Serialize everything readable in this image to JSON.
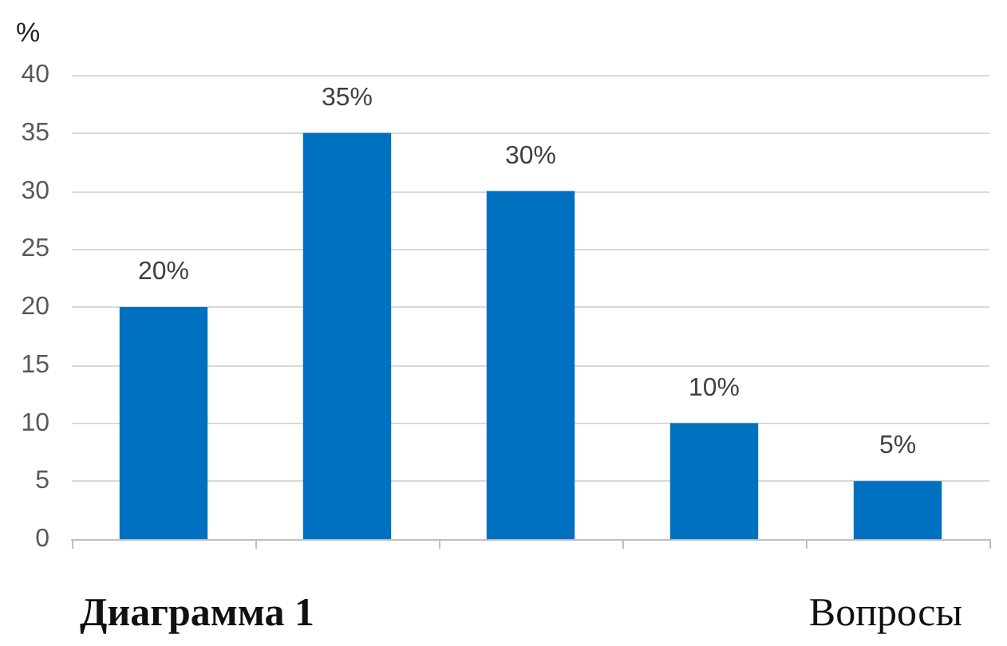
{
  "chart_data": {
    "type": "bar",
    "ylabel": "%",
    "xlabel": "Вопросы",
    "annotations": [
      "Диаграмма 1"
    ],
    "categories": [
      null,
      null,
      null,
      null,
      null
    ],
    "values": [
      20,
      35,
      30,
      10,
      5
    ],
    "value_labels": [
      "20%",
      "35%",
      "30%",
      "10%",
      "5%"
    ],
    "color": "#0070c0",
    "ylim": [
      0,
      40
    ],
    "yticks": [
      0,
      5,
      10,
      15,
      20,
      25,
      30,
      35,
      40
    ],
    "grid": "y"
  }
}
